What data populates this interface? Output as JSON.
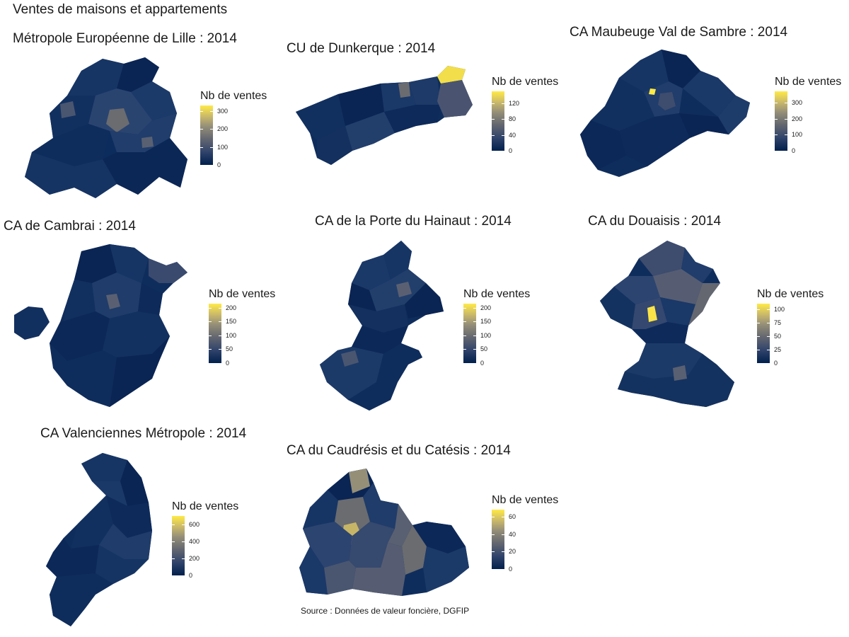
{
  "title": "Ventes de maisons et appartements",
  "source": "Source : Données de valeur foncière, DGFIP",
  "colors": {
    "low": "#00204d",
    "mid": "#666970",
    "high": "#ffea46"
  },
  "panels": [
    {
      "id": "lille",
      "title": "Métropole Européenne de Lille : 2014",
      "legend_title": "Nb de ventes",
      "max": 330,
      "ticks": [
        "0",
        "100",
        "200",
        "300"
      ],
      "tick_values": [
        0,
        100,
        200,
        300
      ]
    },
    {
      "id": "dunkerque",
      "title": "CU de Dunkerque : 2014",
      "legend_title": "Nb de ventes",
      "max": 150,
      "ticks": [
        "0",
        "40",
        "80",
        "120"
      ],
      "tick_values": [
        0,
        40,
        80,
        120
      ]
    },
    {
      "id": "maubeuge",
      "title": "CA Maubeuge Val de Sambre : 2014",
      "legend_title": "Nb de ventes",
      "max": 370,
      "ticks": [
        "0",
        "100",
        "200",
        "300"
      ],
      "tick_values": [
        0,
        100,
        200,
        300
      ]
    },
    {
      "id": "cambrai",
      "title": "CA de Cambrai : 2014",
      "legend_title": "Nb de ventes",
      "max": 215,
      "ticks": [
        "0",
        "50",
        "100",
        "150",
        "200"
      ],
      "tick_values": [
        0,
        50,
        100,
        150,
        200
      ]
    },
    {
      "id": "hainaut",
      "title": "CA de la Porte du Hainaut : 2014",
      "legend_title": "Nb de ventes",
      "max": 215,
      "ticks": [
        "0",
        "50",
        "100",
        "150",
        "200"
      ],
      "tick_values": [
        0,
        50,
        100,
        150,
        200
      ]
    },
    {
      "id": "douaisis",
      "title": "CA du Douaisis : 2014",
      "legend_title": "Nb de ventes",
      "max": 110,
      "ticks": [
        "0",
        "25",
        "50",
        "75",
        "100"
      ],
      "tick_values": [
        0,
        25,
        50,
        75,
        100
      ]
    },
    {
      "id": "valenciennes",
      "title": "CA Valenciennes Métropole : 2014",
      "legend_title": "Nb de ventes",
      "max": 700,
      "ticks": [
        "0",
        "200",
        "400",
        "600"
      ],
      "tick_values": [
        0,
        200,
        400,
        600
      ]
    },
    {
      "id": "caudresis",
      "title": "CA du Caudrésis et du Catésis : 2014",
      "legend_title": "Nb de ventes",
      "max": 68,
      "ticks": [
        "0",
        "20",
        "40",
        "60"
      ],
      "tick_values": [
        0,
        20,
        40,
        60
      ]
    }
  ]
}
